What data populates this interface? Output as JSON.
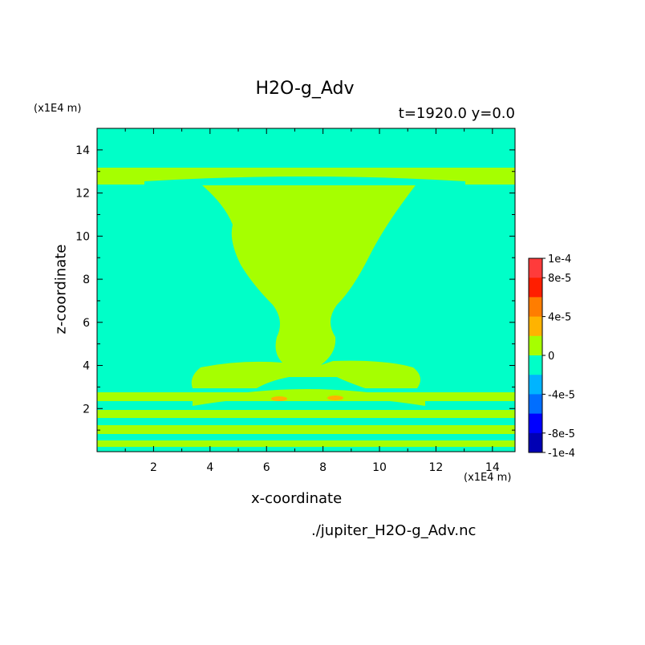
{
  "chart_data": {
    "type": "heatmap",
    "title": "H2O-g_Adv",
    "time_label": "t=1920.0 y=0.0",
    "xlabel": "x-coordinate",
    "ylabel": "z-coordinate",
    "x_unit": "(x1E4 m)",
    "z_unit": "(x1E4 m)",
    "xlim": [
      0,
      14.8
    ],
    "ylim": [
      0,
      15
    ],
    "x_ticks": [
      2,
      4,
      6,
      8,
      10,
      12,
      14
    ],
    "y_ticks": [
      2,
      4,
      6,
      8,
      10,
      12,
      14
    ],
    "colorbar": {
      "levels": [
        "1e-4",
        "8e-5",
        "4e-5",
        "0",
        "-4e-5",
        "-8e-5",
        "-1e-4"
      ],
      "colors": [
        "#ff3b3b",
        "#ff1e00",
        "#ff7d00",
        "#ffb300",
        "#a6ff00",
        "#00ffc8",
        "#00b4ff",
        "#006eff",
        "#0000ff",
        "#0000b4"
      ]
    },
    "background_value": "0",
    "filename": "./jupiter_H2O-g_Adv.nc"
  }
}
